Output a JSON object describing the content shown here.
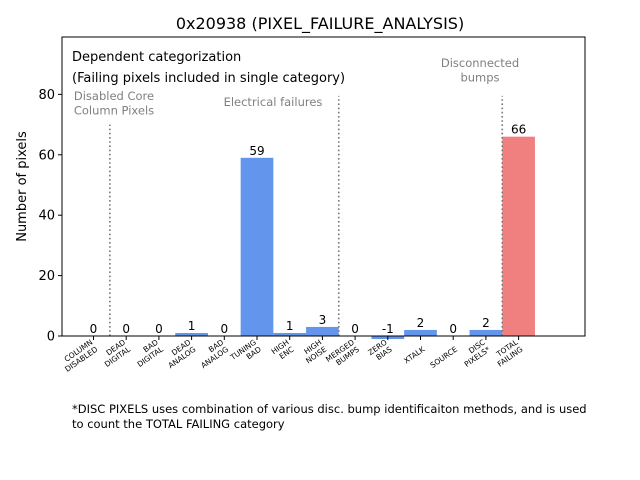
{
  "chart_data": {
    "type": "bar",
    "title": "0x20938 (PIXEL_FAILURE_ANALYSIS)",
    "ylabel": "Number of pixels",
    "xlabel": "",
    "ylim": [
      0,
      99
    ],
    "yticks": [
      0,
      20,
      40,
      60,
      80
    ],
    "categories": [
      [
        "COLUMN",
        "DISABLED"
      ],
      [
        "DEAD",
        "DIGITAL"
      ],
      [
        "BAD",
        "DIGITAL"
      ],
      [
        "DEAD",
        "ANALOG"
      ],
      [
        "BAD",
        "ANALOG"
      ],
      [
        "TUNING",
        "BAD"
      ],
      [
        "HIGH",
        "ENC"
      ],
      [
        "HIGH",
        "NOISE"
      ],
      [
        "MERGED",
        "BUMPS"
      ],
      [
        "ZERO",
        "BIAS"
      ],
      [
        "XTALK"
      ],
      [
        "SOURCE"
      ],
      [
        "DISC",
        "PIXELS*"
      ],
      [
        "TOTAL",
        "FAILING"
      ]
    ],
    "values": [
      0,
      0,
      0,
      1,
      0,
      59,
      1,
      3,
      0,
      -1,
      2,
      0,
      2,
      66
    ],
    "value_labels": [
      "0",
      "0",
      "0",
      "1",
      "0",
      "59",
      "1",
      "3",
      "0",
      "-1",
      "2",
      "0",
      "2",
      "66"
    ],
    "bar_colors": [
      "#6495ed",
      "#6495ed",
      "#6495ed",
      "#6495ed",
      "#6495ed",
      "#6495ed",
      "#6495ed",
      "#6495ed",
      "#6495ed",
      "#6495ed",
      "#6495ed",
      "#6495ed",
      "#6495ed",
      "#f08080"
    ],
    "separators_after_category": [
      0,
      7,
      12
    ],
    "region_labels": [
      [
        "Disabled Core",
        "Column Pixels"
      ],
      [
        "Electrical failures"
      ],
      [
        "Disconnected",
        "bumps"
      ]
    ],
    "annotation_box": [
      "Dependent categorization",
      "(Failing pixels included in single category)"
    ],
    "grid": false
  },
  "footnote": "*DISC PIXELS uses combination of various disc. bump identificaiton methods, and is used\nto count the TOTAL FAILING category"
}
